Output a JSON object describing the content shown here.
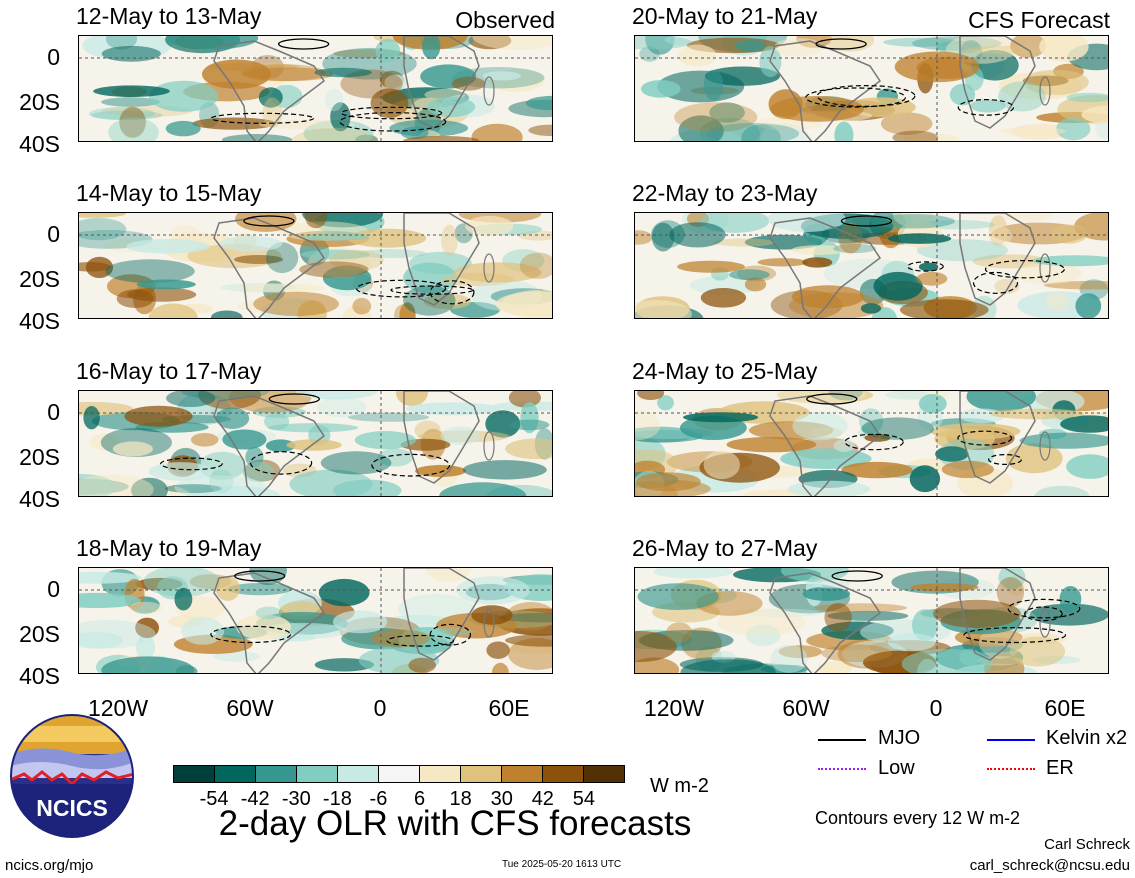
{
  "panels": {
    "left": [
      {
        "title": "12-May to 13-May",
        "tag": "Observed"
      },
      {
        "title": "14-May to 15-May",
        "tag": ""
      },
      {
        "title": "16-May to 17-May",
        "tag": ""
      },
      {
        "title": "18-May to 19-May",
        "tag": ""
      }
    ],
    "right": [
      {
        "title": "20-May to 21-May",
        "tag": "CFS Forecast"
      },
      {
        "title": "22-May to 23-May",
        "tag": ""
      },
      {
        "title": "24-May to 25-May",
        "tag": ""
      },
      {
        "title": "26-May to 27-May",
        "tag": ""
      }
    ]
  },
  "lat_labels": [
    "0",
    "20S",
    "40S"
  ],
  "lon_labels": [
    "120W",
    "60W",
    "0",
    "60E"
  ],
  "colorbar": {
    "labels": [
      "-54",
      "-42",
      "-30",
      "-18",
      "-6",
      "6",
      "18",
      "30",
      "42",
      "54"
    ],
    "colors": [
      "#00403a",
      "#01665e",
      "#35978f",
      "#80cdc1",
      "#c7eae5",
      "#f5f5f5",
      "#f6e8c3",
      "#dfc27d",
      "#bf812d",
      "#8c510a",
      "#543005"
    ],
    "units": "W m-2"
  },
  "legend": {
    "items": [
      {
        "label": "MJO",
        "color": "#000000"
      },
      {
        "label": "Kelvin x2",
        "color": "#0000ff"
      },
      {
        "label": "Low",
        "color": "#a020f0"
      },
      {
        "label": "ER",
        "color": "#ff0000"
      }
    ],
    "contours_note": "Contours every 12 W m-2"
  },
  "main_title": "2-day OLR with CFS forecasts",
  "logo_text": "NCICS",
  "footer": {
    "url": "ncics.org/mjo",
    "timestamp": "Tue 2025-05-20 1613 UTC",
    "author": "Carl Schreck",
    "email": "carl_schreck@ncsu.edu"
  }
}
